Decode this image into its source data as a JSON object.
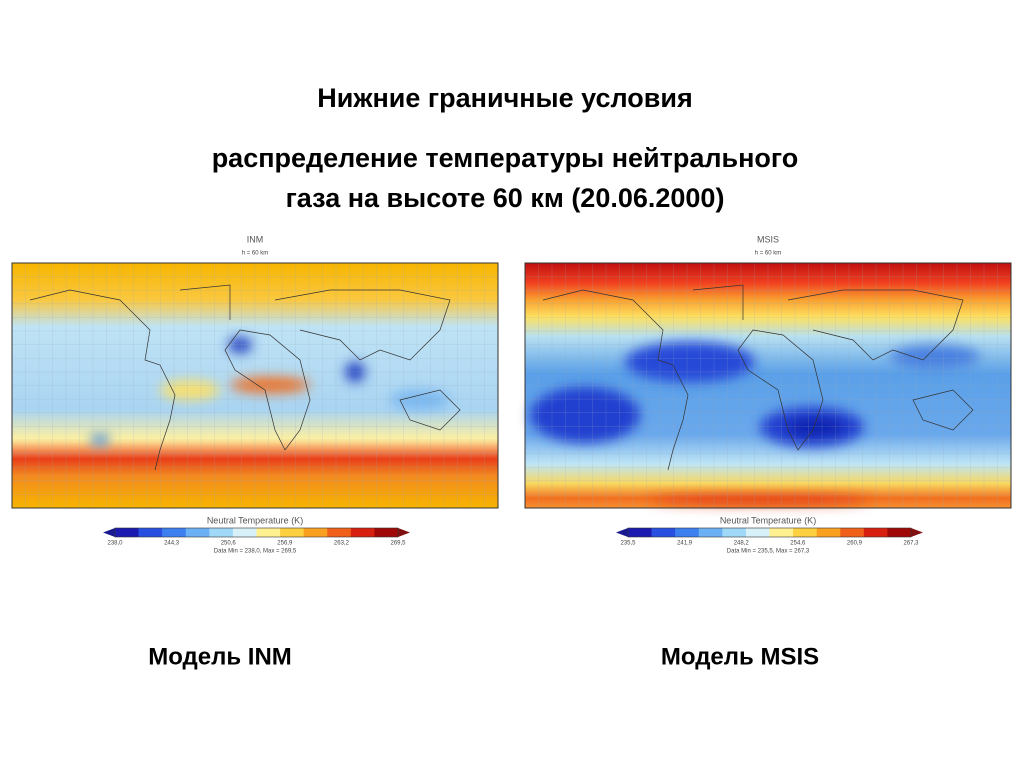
{
  "title": "Нижние граничные условия",
  "subtitle": [
    "распределение температуры нейтрального",
    "газа на высоте 60 км (20.06.2000)"
  ],
  "panels": [
    {
      "model": "INM",
      "height": "h = 60 km",
      "colorbar_title": "Neutral Temperature (K)",
      "colorbar_labels": [
        "238,0",
        "244,3",
        "250,6",
        "256,9",
        "263,2",
        "269,5"
      ],
      "data_range": "Data Min = 238,0, Max = 269,5",
      "caption": "Модель INM"
    },
    {
      "model": "MSIS",
      "height": "h = 60 km",
      "colorbar_title": "Neutral Temperature (K)",
      "colorbar_labels": [
        "235,5",
        "241,9",
        "248,2",
        "254,6",
        "260,9",
        "267,3"
      ],
      "data_range": "Data Min = 235,5, Max = 267,3",
      "caption": "Модель MSIS"
    }
  ]
}
